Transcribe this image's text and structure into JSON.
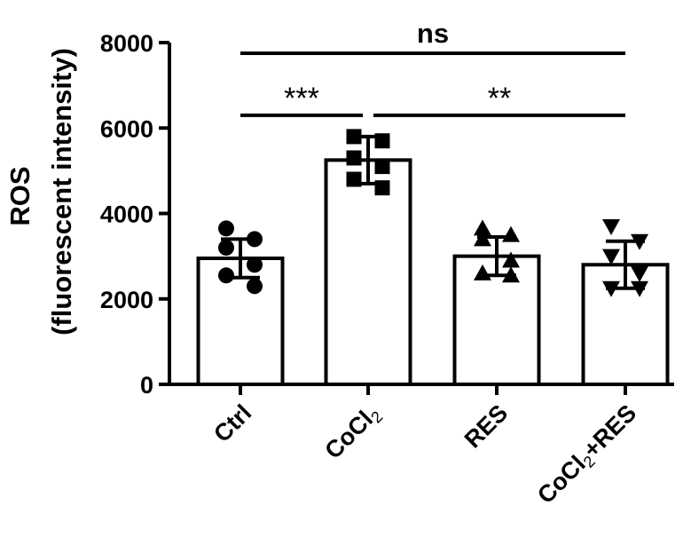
{
  "chart_data": {
    "type": "bar",
    "ylabel_line1": "ROS",
    "ylabel_line2": "(fluorescent intensity)",
    "ylim": [
      0,
      8000
    ],
    "yticks": [
      0,
      2000,
      4000,
      6000,
      8000
    ],
    "ytick_labels": [
      "0",
      "2000",
      "4000",
      "6000",
      "8000"
    ],
    "categories": [
      {
        "base": "Ctrl",
        "sub": "",
        "tail": ""
      },
      {
        "base": "CoCl",
        "sub": "2",
        "tail": ""
      },
      {
        "base": "RES",
        "sub": "",
        "tail": ""
      },
      {
        "base": "CoCl",
        "sub": "2",
        "tail": "+RES"
      }
    ],
    "means": [
      2950,
      5250,
      3000,
      2800
    ],
    "sd": [
      450,
      550,
      450,
      550
    ],
    "marker_shapes": [
      "circle",
      "square",
      "triangle-up",
      "triangle-down"
    ],
    "points": [
      [
        3650,
        3400,
        3200,
        2800,
        2550,
        2300
      ],
      [
        5800,
        5700,
        5300,
        5100,
        4800,
        4600
      ],
      [
        3650,
        3500,
        3400,
        2900,
        2600,
        2550
      ],
      [
        3700,
        3350,
        3000,
        2600,
        2250,
        2250
      ]
    ],
    "bar_fill": "#ffffff",
    "stroke_color": "#000000",
    "comparisons": [
      {
        "from": 0,
        "to": 3,
        "label": "ns",
        "y": 7750
      },
      {
        "from": 0,
        "to": 1,
        "label": "***",
        "y": 6300
      },
      {
        "from": 1,
        "to": 3,
        "label": "**",
        "y": 6300
      }
    ]
  }
}
